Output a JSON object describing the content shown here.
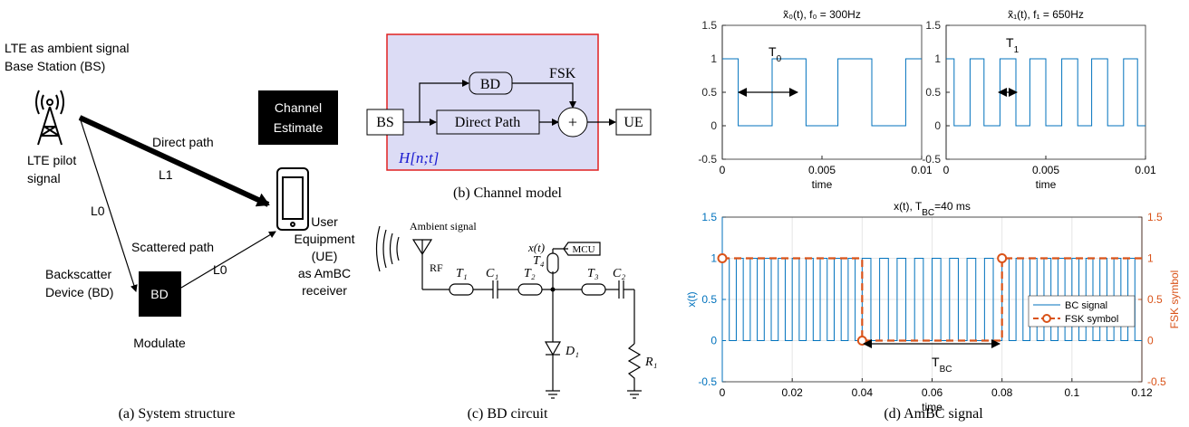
{
  "panel_a": {
    "caption": "(a) System structure",
    "bs_label": [
      "LTE as ambient signal",
      "Base Station (BS)"
    ],
    "pilot_label": [
      "LTE pilot",
      "signal"
    ],
    "direct_path": "Direct path",
    "direct_loss": "L1",
    "estimate": [
      "Channel",
      "Estimate"
    ],
    "bd_loss": "L0",
    "scattered_path": "Scattered path",
    "scattered_loss": "L0",
    "ue_label": [
      "User",
      "Equipment",
      "(UE)",
      "as AmBC",
      "receiver"
    ],
    "bd_name": [
      "Backscatter",
      "Device (BD)"
    ],
    "bd_box": "BD",
    "modulate": "Modulate"
  },
  "panel_b": {
    "caption": "(b) Channel model",
    "bs": "BS",
    "bd": "BD",
    "fsk": "FSK",
    "direct": "Direct Path",
    "sum": "+",
    "ue": "UE",
    "channel": "H[n;t]"
  },
  "panel_c": {
    "caption": "(c) BD circuit",
    "ambient": "Ambient signal",
    "rf": "RF",
    "t1": "T₁",
    "c1": "C₁",
    "t2": "T₂",
    "t4": "T₄",
    "t3": "T₃",
    "c2": "C₂",
    "d1": "D₁",
    "r1": "R₁",
    "xt": "x(t)",
    "mcu": "MCU"
  },
  "panel_d": {
    "caption": "(d) AmBC signal"
  },
  "chart_data": [
    {
      "type": "line",
      "title": [
        "x̃₀(t), f₀ = 300Hz"
      ],
      "xlabel": "time",
      "annotation": [
        "T",
        "0"
      ],
      "xlim": [
        0,
        0.01
      ],
      "ylim": [
        -0.5,
        1.5
      ],
      "xticks": [
        0,
        0.005,
        0.01
      ],
      "yticks": [
        -0.5,
        0,
        0.5,
        1,
        1.5
      ],
      "grid": false,
      "series": [
        {
          "color": "#0072bd",
          "x": [
            0,
            0.0008,
            0.0008,
            0.0025,
            0.0025,
            0.0042,
            0.0042,
            0.0058,
            0.0058,
            0.0075,
            0.0075,
            0.0092,
            0.0092,
            0.01
          ],
          "values": [
            1,
            1,
            0,
            0,
            1,
            1,
            0,
            0,
            1,
            1,
            0,
            0,
            1,
            1
          ]
        }
      ]
    },
    {
      "type": "line",
      "title": [
        "x̃₁(t), f₁ = 650Hz"
      ],
      "xlabel": "time",
      "annotation": [
        "T",
        "1"
      ],
      "xlim": [
        0,
        0.01
      ],
      "ylim": [
        -0.5,
        1.5
      ],
      "xticks": [
        0,
        0.005,
        0.01
      ],
      "yticks": [
        -0.5,
        0,
        0.5,
        1,
        1.5
      ],
      "grid": false,
      "series": [
        {
          "color": "#0072bd",
          "x": [
            0,
            0.0004,
            0.0004,
            0.0012,
            0.0012,
            0.0019,
            0.0019,
            0.0027,
            0.0027,
            0.0035,
            0.0035,
            0.0042,
            0.0042,
            0.005,
            0.005,
            0.0058,
            0.0058,
            0.0066,
            0.0066,
            0.0073,
            0.0073,
            0.0081,
            0.0081,
            0.0089,
            0.0089,
            0.0096,
            0.0096,
            0.01
          ],
          "values": [
            1,
            1,
            0,
            0,
            1,
            1,
            0,
            0,
            1,
            1,
            0,
            0,
            1,
            1,
            0,
            0,
            1,
            1,
            0,
            0,
            1,
            1,
            0,
            0,
            1,
            1,
            0,
            0
          ]
        }
      ]
    },
    {
      "type": "line",
      "title": [
        "x(t), T",
        "BC",
        "=40 ms"
      ],
      "xlabel": "time",
      "ylabel": "x(t)",
      "y2label": "FSK symbol",
      "annotation": [
        "T",
        "BC"
      ],
      "xlim": [
        0,
        0.12
      ],
      "ylim": [
        -0.5,
        1.5
      ],
      "y2lim": [
        -0.5,
        1.5
      ],
      "xticks": [
        0,
        0.02,
        0.04,
        0.06,
        0.08,
        0.1,
        0.12
      ],
      "yticks": [
        -0.5,
        0,
        0.5,
        1,
        1.5
      ],
      "y2ticks": [
        -0.5,
        0,
        0.5,
        1,
        1.5
      ],
      "grid": true,
      "legend": "right",
      "series": [
        {
          "name": "BC signal",
          "color": "#0072bd",
          "x": [
            0,
            0.002,
            0.002,
            0.004,
            0.004,
            0.006,
            0.006,
            0.008,
            0.008,
            0.01,
            0.01,
            0.012,
            0.012,
            0.014,
            0.014,
            0.016,
            0.016,
            0.018,
            0.018,
            0.02,
            0.02,
            0.022,
            0.022,
            0.024,
            0.024,
            0.026,
            0.026,
            0.028,
            0.028,
            0.03,
            0.03,
            0.032,
            0.032,
            0.034,
            0.034,
            0.036,
            0.036,
            0.038,
            0.038,
            0.04,
            0.04,
            0.0425,
            0.0425,
            0.045,
            0.045,
            0.0475,
            0.0475,
            0.05,
            0.05,
            0.0525,
            0.0525,
            0.055,
            0.055,
            0.0575,
            0.0575,
            0.06,
            0.06,
            0.0625,
            0.0625,
            0.065,
            0.065,
            0.0675,
            0.0675,
            0.07,
            0.07,
            0.0725,
            0.0725,
            0.075,
            0.075,
            0.0775,
            0.0775,
            0.08,
            0.08,
            0.082,
            0.082,
            0.084,
            0.084,
            0.086,
            0.086,
            0.088,
            0.088,
            0.09,
            0.09,
            0.092,
            0.092,
            0.094,
            0.094,
            0.096,
            0.096,
            0.098,
            0.098,
            0.1,
            0.1,
            0.102,
            0.102,
            0.104,
            0.104,
            0.106,
            0.106,
            0.108,
            0.108,
            0.11,
            0.11,
            0.112,
            0.112,
            0.114,
            0.114,
            0.116,
            0.116,
            0.118,
            0.118,
            0.12
          ],
          "values": [
            1,
            1,
            0,
            0,
            1,
            1,
            0,
            0,
            1,
            1,
            0,
            0,
            1,
            1,
            0,
            0,
            1,
            1,
            0,
            0,
            1,
            1,
            0,
            0,
            1,
            1,
            0,
            0,
            1,
            1,
            0,
            0,
            1,
            1,
            0,
            0,
            1,
            1,
            0,
            0,
            1,
            1,
            0,
            0,
            1,
            1,
            0,
            0,
            1,
            1,
            0,
            0,
            1,
            1,
            0,
            0,
            1,
            1,
            0,
            0,
            1,
            1,
            0,
            0,
            1,
            1,
            0,
            0,
            1,
            1,
            0,
            0,
            1,
            1,
            0,
            0,
            1,
            1,
            0,
            0,
            1,
            1,
            0,
            0,
            1,
            1,
            0,
            0,
            1,
            1,
            0,
            0,
            1,
            1,
            0,
            0,
            1,
            1,
            0,
            0,
            1,
            1,
            0,
            0,
            1,
            1,
            0,
            0,
            1,
            1,
            0,
            0
          ]
        },
        {
          "name": "FSK symbol",
          "color": "#d95319",
          "axis": "y2",
          "linestyle": "dashed",
          "marker": "circle",
          "x": [
            0,
            0.04,
            0.04,
            0.08,
            0.08,
            0.12
          ],
          "values": [
            1,
            1,
            0,
            0,
            1,
            1
          ]
        }
      ]
    }
  ]
}
